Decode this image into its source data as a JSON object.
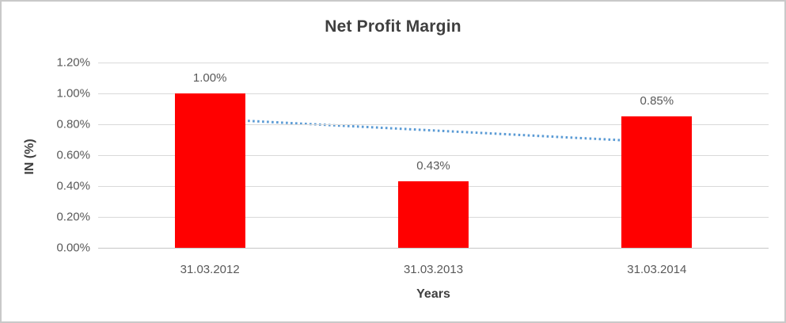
{
  "window": {
    "background_color": "#ffffff",
    "border_color": "#c9c9c9"
  },
  "chart_data": {
    "type": "bar",
    "title": "Net Profit Margin",
    "xlabel": "Years",
    "ylabel": "IN (%)",
    "categories": [
      "31.03.2012",
      "31.03.2013",
      "31.03.2014"
    ],
    "values": [
      1.0,
      0.43,
      0.85
    ],
    "data_labels": [
      "1.00%",
      "0.43%",
      "0.85%"
    ],
    "unit": "percent",
    "ylim": [
      0,
      1.2
    ],
    "y_ticks": [
      {
        "label": "0.00%",
        "value": 0.0
      },
      {
        "label": "0.20%",
        "value": 0.2
      },
      {
        "label": "0.40%",
        "value": 0.4
      },
      {
        "label": "0.60%",
        "value": 0.6
      },
      {
        "label": "0.80%",
        "value": 0.8
      },
      {
        "label": "1.00%",
        "value": 1.0
      },
      {
        "label": "1.20%",
        "value": 1.2
      }
    ],
    "grid": true,
    "legend": "none",
    "bar_color": "#ff0000",
    "label_color": "#595959",
    "gridline_color": "#d9d9d9",
    "trendline": {
      "style": "dotted",
      "color": "#5b9bd5",
      "start_value": 0.835,
      "end_value": 0.685
    }
  }
}
